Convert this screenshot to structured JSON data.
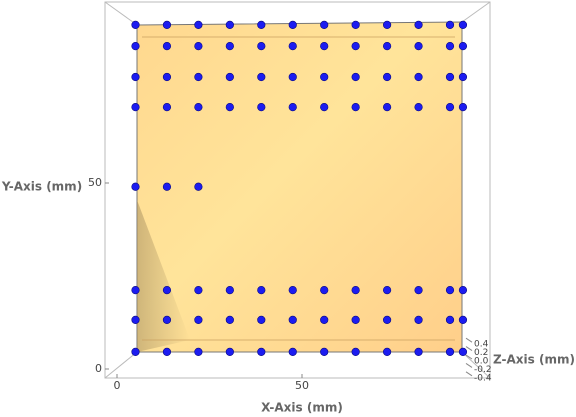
{
  "chart_data": {
    "type": "scatter",
    "xlabel": "X-Axis (mm)",
    "ylabel": "Y-Axis (mm)",
    "zlabel": "Z-Axis (mm)",
    "xticks": [
      0,
      50
    ],
    "yticks": [
      0,
      50
    ],
    "zticks": [
      -0.4,
      -0.2,
      {
        "value": 0,
        "label": "0.0"
      },
      0.2,
      0.4
    ],
    "color": "#1c1cf0",
    "x": [
      5,
      13.5,
      22,
      30.5,
      39,
      47.5,
      56,
      64.5,
      73,
      81.5,
      90,
      93.5,
      5,
      13.5,
      22,
      30.5,
      39,
      47.5,
      56,
      64.5,
      73,
      81.5,
      90,
      93.5,
      5,
      13.5,
      22,
      30.5,
      39,
      47.5,
      56,
      64.5,
      73,
      81.5,
      90,
      93.5,
      5,
      13.5,
      22,
      5,
      13.5,
      22,
      30.5,
      39,
      47.5,
      56,
      64.5,
      73,
      81.5,
      90,
      93.5,
      5,
      13.5,
      22,
      30.5,
      39,
      47.5,
      56,
      64.5,
      73,
      81.5,
      90,
      93.5,
      5,
      13.5,
      22,
      30.5,
      39,
      47.5,
      56,
      64.5,
      73,
      81.5,
      90,
      93.5,
      5,
      13.5,
      22,
      30.5,
      39,
      47.5,
      56,
      64.5,
      73,
      81.5,
      90,
      93.5
    ],
    "y": [
      4.6,
      4.6,
      4.6,
      4.6,
      4.6,
      4.6,
      4.6,
      4.6,
      4.6,
      4.6,
      4.6,
      4.6,
      13.2,
      13.2,
      13.2,
      13.2,
      13.2,
      13.2,
      13.2,
      13.2,
      13.2,
      13.2,
      13.2,
      13.2,
      21.2,
      21.2,
      21.2,
      21.2,
      21.2,
      21.2,
      21.2,
      21.2,
      21.2,
      21.2,
      21.2,
      21.2,
      49,
      49,
      49,
      70.4,
      70.4,
      70.4,
      70.4,
      70.4,
      70.4,
      70.4,
      70.4,
      70.4,
      70.4,
      70.4,
      70.4,
      78.5,
      78.5,
      78.5,
      78.5,
      78.5,
      78.5,
      78.5,
      78.5,
      78.5,
      78.5,
      78.5,
      78.5,
      86.8,
      86.8,
      86.8,
      86.8,
      86.8,
      86.8,
      86.8,
      86.8,
      86.8,
      86.8,
      86.8,
      86.8,
      92.5,
      92.5,
      92.5,
      92.5,
      92.5,
      92.5,
      92.5,
      92.5,
      92.5,
      92.5,
      92.5,
      92.5
    ]
  }
}
